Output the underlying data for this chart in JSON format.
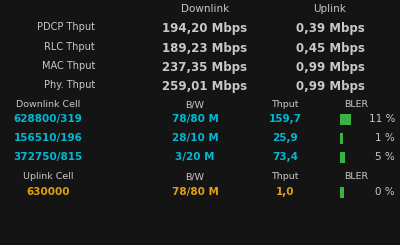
{
  "bg_color": "#141414",
  "text_color_white": "#c8c8c8",
  "text_color_cyan": "#00b8d4",
  "text_color_yellow": "#e0a010",
  "text_color_green": "#3cb043",
  "thput_rows": [
    [
      "PDCP Thput",
      "194,20 Mbps",
      "0,39 Mbps"
    ],
    [
      "RLC Thput",
      "189,23 Mbps",
      "0,45 Mbps"
    ],
    [
      "MAC Thput",
      "237,35 Mbps",
      "0,99 Mbps"
    ],
    [
      "Phy. Thput",
      "259,01 Mbps",
      "0,99 Mbps"
    ]
  ],
  "dl_rows": [
    [
      "628800/319",
      "78/80 M",
      "159,7",
      11
    ],
    [
      "156510/196",
      "28/10 M",
      "25,9",
      1
    ],
    [
      "372750/815",
      "3/20 M",
      "73,4",
      5
    ]
  ],
  "ul_rows": [
    [
      "630000",
      "78/80 M",
      "1,0",
      0
    ]
  ]
}
